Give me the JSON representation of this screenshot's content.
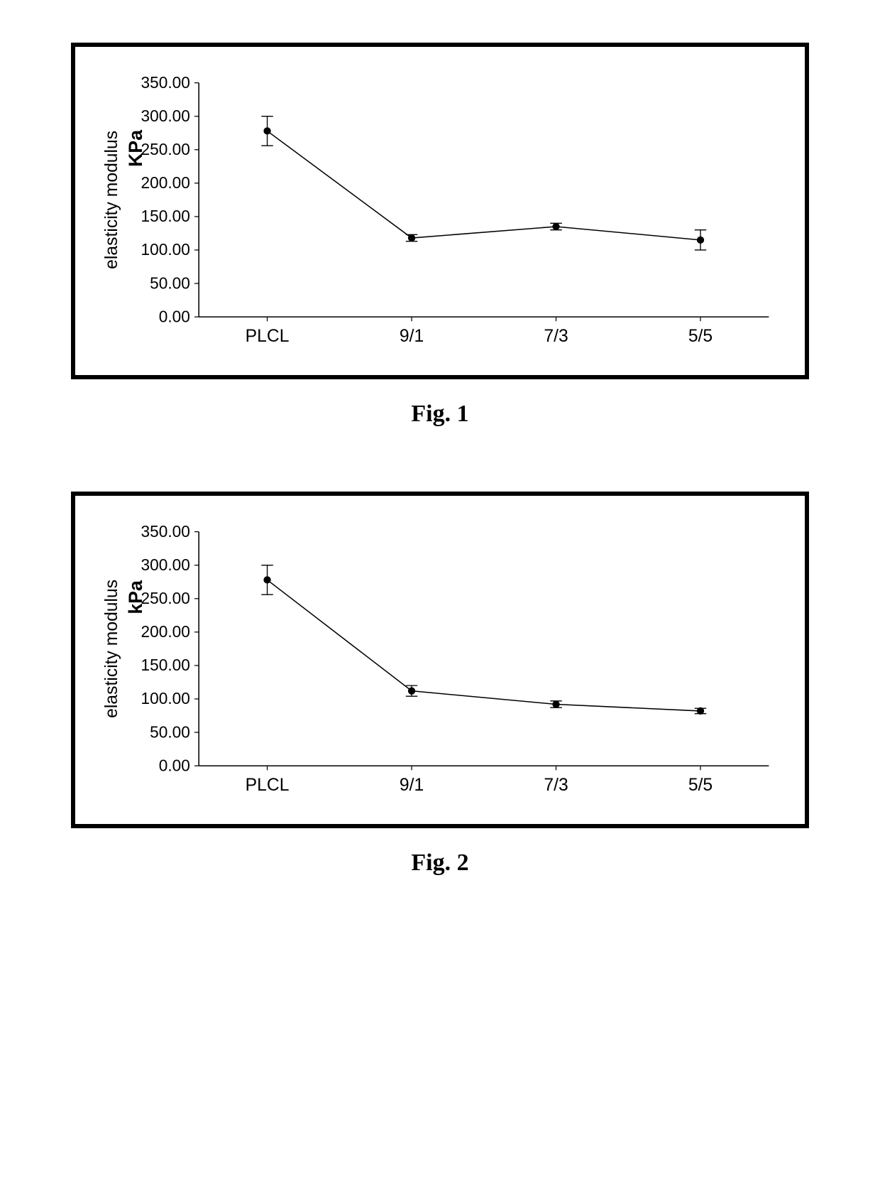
{
  "fig1": {
    "caption": "Fig. 1",
    "chart": {
      "type": "line",
      "y_axis_label": "elasticity modulus",
      "y_axis_unit": "KPa",
      "categories": [
        "PLCL",
        "9/1",
        "7/3",
        "5/5"
      ],
      "values": [
        278,
        118,
        135,
        115
      ],
      "error_low": [
        22,
        5,
        5,
        15
      ],
      "error_high": [
        22,
        5,
        5,
        15
      ],
      "ylim": [
        0,
        350
      ],
      "ytick_step": 50,
      "ytick_labels": [
        "0.00",
        "50.00",
        "100.00",
        "150.00",
        "200.00",
        "250.00",
        "300.00",
        "350.00"
      ],
      "line_color": "#000000",
      "marker_color": "#000000",
      "background_color": "#ffffff",
      "axis_color": "#000000",
      "tick_font_size": 22,
      "label_font_size": 24,
      "unit_font_size": 26,
      "marker_size": 5,
      "line_width": 1.5
    }
  },
  "fig2": {
    "caption": "Fig. 2",
    "chart": {
      "type": "line",
      "y_axis_label": "elasticity modulus",
      "y_axis_unit": "kPa",
      "categories": [
        "PLCL",
        "9/1",
        "7/3",
        "5/5"
      ],
      "values": [
        278,
        112,
        92,
        82
      ],
      "error_low": [
        22,
        8,
        5,
        4
      ],
      "error_high": [
        22,
        8,
        5,
        4
      ],
      "ylim": [
        0,
        350
      ],
      "ytick_step": 50,
      "ytick_labels": [
        "0.00",
        "50.00",
        "100.00",
        "150.00",
        "200.00",
        "250.00",
        "300.00",
        "350.00"
      ],
      "line_color": "#000000",
      "marker_color": "#000000",
      "background_color": "#ffffff",
      "axis_color": "#000000",
      "tick_font_size": 22,
      "label_font_size": 24,
      "unit_font_size": 26,
      "marker_size": 5,
      "line_width": 1.5
    }
  }
}
